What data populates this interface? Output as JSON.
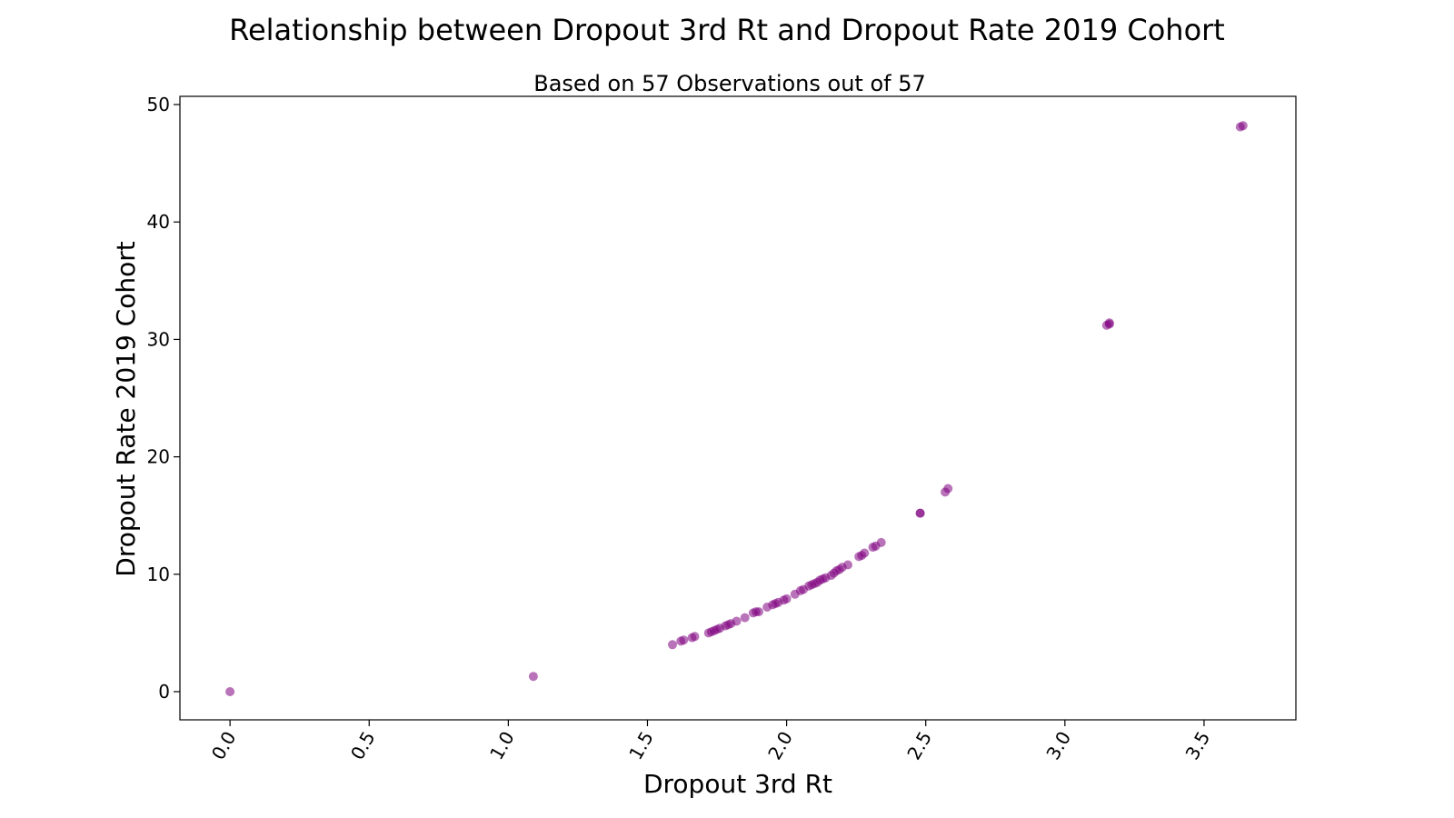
{
  "chart_data": {
    "type": "scatter",
    "title": "Relationship between Dropout 3rd Rt and Dropout Rate 2019 Cohort",
    "subtitle": "Based on 57 Observations out of 57",
    "xlabel": "Dropout 3rd Rt",
    "ylabel": "Dropout Rate 2019 Cohort",
    "xlim": [
      -0.18,
      3.83
    ],
    "ylim": [
      -2.4,
      50.7
    ],
    "xticks": [
      0.0,
      0.5,
      1.0,
      1.5,
      2.0,
      2.5,
      3.0,
      3.5
    ],
    "xtick_labels": [
      "0.0",
      "0.5",
      "1.0",
      "1.5",
      "2.0",
      "2.5",
      "3.0",
      "3.5"
    ],
    "yticks": [
      0,
      10,
      20,
      30,
      40,
      50
    ],
    "ytick_labels": [
      "0",
      "10",
      "20",
      "30",
      "40",
      "50"
    ],
    "grid": false,
    "point_color": "#800080",
    "point_alpha": 0.55,
    "series": [
      {
        "x": [
          0.0,
          1.09,
          1.59,
          1.62,
          1.63,
          1.66,
          1.67,
          1.72,
          1.73,
          1.74,
          1.76,
          1.78,
          1.79,
          1.82,
          1.85,
          1.88,
          1.89,
          1.9,
          1.93,
          1.95,
          1.96,
          1.97,
          1.99,
          2.0,
          2.03,
          2.05,
          2.06,
          2.08,
          2.09,
          2.11,
          2.12,
          2.13,
          2.14,
          2.16,
          2.17,
          2.18,
          2.19,
          2.2,
          2.26,
          2.27,
          2.28,
          2.31,
          2.32,
          2.34,
          2.48,
          2.48,
          2.57,
          2.58,
          3.15,
          3.16,
          3.16,
          3.63,
          3.64,
          1.75,
          1.8,
          2.1,
          2.22
        ],
        "y": [
          0.0,
          1.3,
          4.0,
          4.3,
          4.4,
          4.6,
          4.7,
          5.0,
          5.1,
          5.2,
          5.4,
          5.6,
          5.7,
          6.0,
          6.3,
          6.7,
          6.8,
          6.8,
          7.2,
          7.4,
          7.5,
          7.6,
          7.8,
          7.9,
          8.3,
          8.6,
          8.7,
          9.0,
          9.1,
          9.3,
          9.5,
          9.6,
          9.7,
          9.9,
          10.1,
          10.3,
          10.4,
          10.6,
          11.5,
          11.6,
          11.8,
          12.3,
          12.4,
          12.7,
          15.2,
          15.2,
          17.0,
          17.3,
          31.2,
          31.3,
          31.4,
          48.1,
          48.2,
          5.3,
          5.8,
          9.2,
          10.8
        ]
      }
    ]
  }
}
